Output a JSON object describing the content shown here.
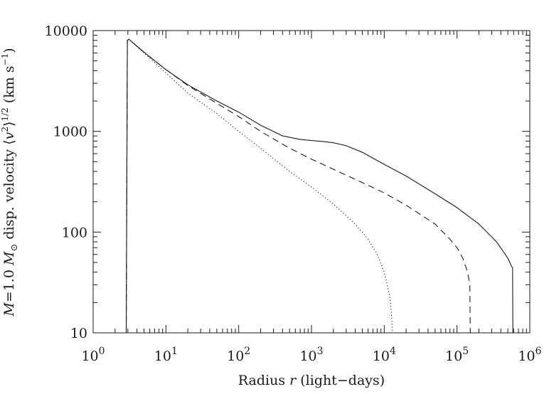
{
  "chart_data": {
    "type": "line",
    "xscale": "log",
    "yscale": "log",
    "xlim": [
      1,
      1000000
    ],
    "ylim": [
      10,
      10000
    ],
    "xlabel_parts": [
      "Radius ",
      "r",
      " (light−days)"
    ],
    "ylabel_parts": [
      "M",
      "=1.0 ",
      "M",
      "⊙",
      " disp. velocity ⟨",
      "v",
      "2",
      "⟩",
      "1/2",
      " (km s",
      "−1",
      ")"
    ],
    "x_ticks": [
      {
        "value": 1,
        "base": "10",
        "exp": "0"
      },
      {
        "value": 10,
        "base": "10",
        "exp": "1"
      },
      {
        "value": 100,
        "base": "10",
        "exp": "2"
      },
      {
        "value": 1000,
        "base": "10",
        "exp": "3"
      },
      {
        "value": 10000,
        "base": "10",
        "exp": "4"
      },
      {
        "value": 100000,
        "base": "10",
        "exp": "5"
      },
      {
        "value": 1000000,
        "base": "10",
        "exp": "6"
      }
    ],
    "y_ticks": [
      {
        "value": 10,
        "label": "10"
      },
      {
        "value": 100,
        "label": "100"
      },
      {
        "value": 1000,
        "label": "1000"
      },
      {
        "value": 10000,
        "label": "10000"
      }
    ],
    "series": [
      {
        "style": "solid",
        "x": [
          2.85,
          2.95,
          3.1,
          5,
          10,
          20,
          50,
          100,
          200,
          400,
          700,
          1000,
          1500,
          2000,
          3000,
          5000,
          10000,
          20000,
          50000,
          100000,
          200000,
          350000,
          500000,
          560000,
          580000,
          585000
        ],
        "y": [
          10,
          8000,
          8200,
          6100,
          4100,
          2900,
          2000,
          1550,
          1150,
          900,
          830,
          810,
          790,
          770,
          720,
          620,
          470,
          360,
          240,
          175,
          120,
          80,
          55,
          46,
          44,
          10
        ]
      },
      {
        "style": "dashed",
        "x": [
          2.85,
          2.95,
          3.1,
          5,
          10,
          20,
          50,
          100,
          200,
          500,
          1000,
          2000,
          5000,
          10000,
          20000,
          50000,
          80000,
          100000,
          120000,
          140000,
          150000,
          152000
        ],
        "y": [
          10,
          8000,
          8200,
          6100,
          4100,
          2850,
          1900,
          1400,
          1000,
          680,
          530,
          420,
          310,
          245,
          185,
          120,
          85,
          70,
          55,
          40,
          30,
          10
        ]
      },
      {
        "style": "dotted",
        "x": [
          2.85,
          2.95,
          3.1,
          5,
          10,
          20,
          50,
          100,
          200,
          500,
          1000,
          2000,
          4000,
          6000,
          8000,
          10000,
          11000,
          12000,
          12500,
          13000
        ],
        "y": [
          10,
          8000,
          8200,
          6000,
          3800,
          2400,
          1500,
          1000,
          680,
          400,
          280,
          190,
          120,
          85,
          60,
          40,
          30,
          22,
          16,
          10
        ]
      }
    ]
  }
}
